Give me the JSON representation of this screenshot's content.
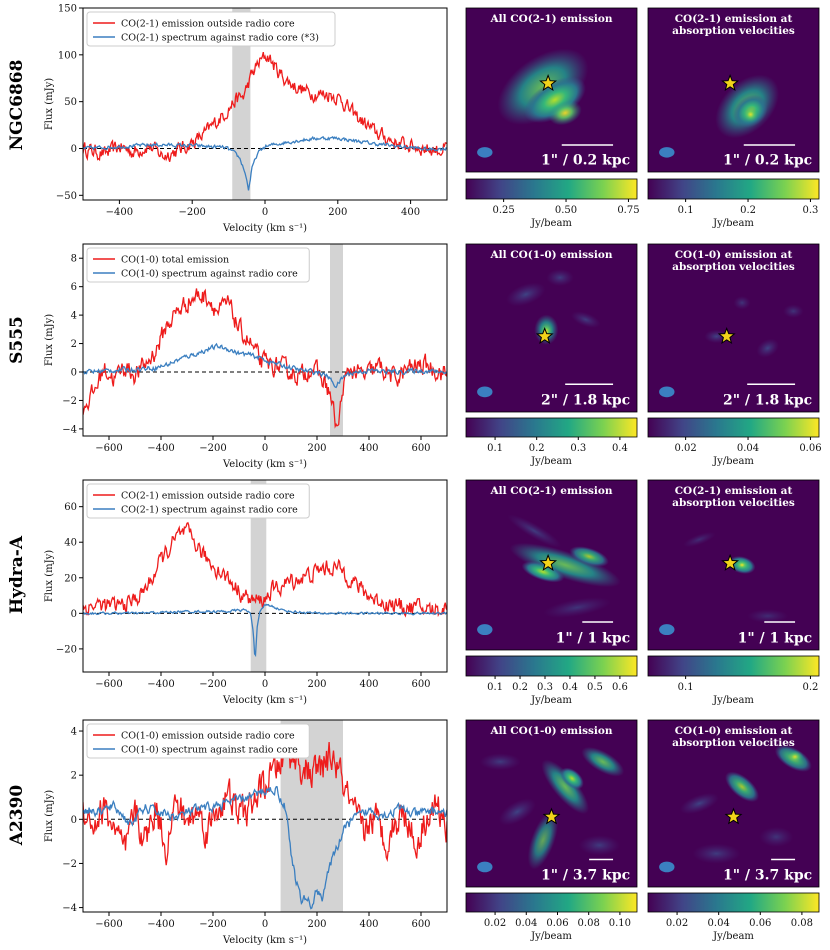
{
  "colors": {
    "red": "#ee1c1c",
    "blue": "#3b7fc0",
    "band": "#d3d3d3",
    "map_bg": "#440154",
    "star": "#f2d31a"
  },
  "chart_data": [
    {
      "type": "line",
      "source": "NGC6868",
      "xlabel": "Velocity (km s⁻¹)",
      "ylabel": "Flux (mJy)",
      "xlim": [
        -500,
        500
      ],
      "ylim": [
        -55,
        150
      ],
      "xticks": [
        -400,
        -200,
        0,
        200,
        400
      ],
      "yticks": [
        -50,
        0,
        50,
        100,
        150
      ],
      "band": [
        -90,
        -40
      ],
      "series": [
        {
          "name": "CO(2-1) emission outside radio core",
          "color": "red",
          "x": [
            -500,
            -440,
            -400,
            -360,
            -320,
            -280,
            -240,
            -200,
            -170,
            -140,
            -110,
            -80,
            -60,
            -40,
            -20,
            0,
            10,
            30,
            60,
            90,
            120,
            150,
            180,
            210,
            240,
            270,
            300,
            330,
            360,
            400,
            440,
            480,
            500
          ],
          "y": [
            0,
            -6,
            2,
            -4,
            3,
            -8,
            -2,
            6,
            14,
            26,
            38,
            52,
            55,
            75,
            90,
            98,
            98,
            85,
            72,
            65,
            60,
            58,
            58,
            52,
            38,
            28,
            18,
            12,
            6,
            3,
            0,
            -2,
            0
          ]
        },
        {
          "name": "CO(2-1) spectrum against radio core (*3)",
          "color": "blue",
          "x": [
            -500,
            -400,
            -300,
            -200,
            -150,
            -110,
            -90,
            -70,
            -55,
            -45,
            -35,
            -20,
            0,
            50,
            100,
            150,
            200,
            250,
            300,
            350,
            400,
            450,
            500
          ],
          "y": [
            0,
            2,
            4,
            3,
            2,
            1,
            -3,
            -10,
            -25,
            -44,
            -20,
            -5,
            2,
            6,
            9,
            11,
            11,
            8,
            5,
            3,
            1,
            -1,
            0
          ]
        }
      ]
    },
    {
      "type": "line",
      "source": "S555",
      "xlabel": "Velocity (km s⁻¹)",
      "ylabel": "Flux (mJy)",
      "xlim": [
        -700,
        700
      ],
      "ylim": [
        -4.5,
        9
      ],
      "xticks": [
        -600,
        -400,
        -200,
        0,
        200,
        400,
        600
      ],
      "yticks": [
        -4,
        -2,
        0,
        2,
        4,
        6,
        8
      ],
      "band": [
        250,
        300
      ],
      "series": [
        {
          "name": "CO(1-0) total emission",
          "color": "red",
          "x": [
            -700,
            -660,
            -620,
            -580,
            -540,
            -500,
            -460,
            -420,
            -380,
            -340,
            -300,
            -260,
            -220,
            -180,
            -140,
            -100,
            -60,
            -20,
            20,
            60,
            100,
            140,
            180,
            220,
            250,
            265,
            280,
            300,
            330,
            380,
            440,
            500,
            560,
            620,
            680,
            700
          ],
          "y": [
            -2.5,
            -1.5,
            0.3,
            -0.5,
            0.4,
            -0.2,
            0.5,
            1.5,
            3.2,
            4.2,
            4.9,
            5.4,
            5.3,
            4.2,
            4.8,
            3.0,
            2.1,
            0.8,
            0.5,
            0.3,
            0,
            -0.3,
            0.4,
            -0.5,
            -1.5,
            -3.0,
            -4.2,
            -1.0,
            0.2,
            -0.3,
            0.4,
            -0.5,
            0.3,
            0.5,
            0,
            -0.2
          ]
        },
        {
          "name": "CO(1-0) spectrum against radio core",
          "color": "blue",
          "x": [
            -700,
            -600,
            -500,
            -420,
            -380,
            -340,
            -300,
            -260,
            -220,
            -180,
            -140,
            -100,
            -60,
            -20,
            20,
            60,
            100,
            140,
            200,
            240,
            260,
            275,
            290,
            310,
            350,
            400,
            500,
            600,
            700
          ],
          "y": [
            0,
            0.1,
            0.2,
            0.3,
            0.5,
            0.8,
            1.1,
            1.3,
            1.6,
            1.8,
            1.6,
            1.3,
            1.2,
            1.0,
            0.7,
            0.5,
            0.3,
            0.1,
            0,
            -0.3,
            -0.7,
            -1.0,
            -0.6,
            -0.2,
            0,
            0.1,
            0,
            0.1,
            0
          ]
        }
      ]
    },
    {
      "type": "line",
      "source": "Hydra-A",
      "xlabel": "Velocity (km s⁻¹)",
      "ylabel": "Flux (mJy)",
      "xlim": [
        -700,
        700
      ],
      "ylim": [
        -33,
        75
      ],
      "xticks": [
        -600,
        -400,
        -200,
        0,
        200,
        400,
        600
      ],
      "yticks": [
        -20,
        0,
        20,
        40,
        60
      ],
      "band": [
        -55,
        5
      ],
      "series": [
        {
          "name": "CO(2-1) emission outside radio core",
          "color": "red",
          "x": [
            -700,
            -640,
            -580,
            -520,
            -480,
            -440,
            -400,
            -360,
            -330,
            -300,
            -270,
            -240,
            -200,
            -160,
            -120,
            -80,
            -50,
            -20,
            0,
            20,
            60,
            100,
            140,
            180,
            220,
            260,
            300,
            340,
            380,
            420,
            460,
            520,
            580,
            640,
            700
          ],
          "y": [
            3,
            5,
            4,
            6,
            10,
            18,
            30,
            38,
            44,
            45,
            40,
            33,
            27,
            22,
            16,
            10,
            7,
            7,
            8,
            12,
            15,
            18,
            20,
            22,
            25,
            26,
            24,
            18,
            12,
            8,
            6,
            4,
            3,
            2,
            3
          ]
        },
        {
          "name": "CO(2-1) spectrum against radio core",
          "color": "blue",
          "x": [
            -700,
            -500,
            -300,
            -150,
            -80,
            -55,
            -45,
            -38,
            -30,
            -20,
            0,
            30,
            60,
            100,
            200,
            300,
            400,
            500,
            600,
            700
          ],
          "y": [
            0,
            0,
            1,
            1,
            2,
            0,
            -10,
            -27,
            -8,
            0,
            5,
            4,
            2,
            1,
            0,
            0,
            0,
            0,
            0,
            0
          ]
        }
      ]
    },
    {
      "type": "line",
      "source": "A2390",
      "xlabel": "Velocity (km s⁻¹)",
      "ylabel": "Flux (mJy)",
      "xlim": [
        -700,
        700
      ],
      "ylim": [
        -4.2,
        4.5
      ],
      "xticks": [
        -600,
        -400,
        -200,
        0,
        200,
        400,
        600
      ],
      "yticks": [
        -4,
        -2,
        0,
        2,
        4
      ],
      "band": [
        60,
        300
      ],
      "series": [
        {
          "name": "CO(1-0) emission outside radio core",
          "color": "red",
          "x": [
            -700,
            -660,
            -620,
            -580,
            -540,
            -500,
            -460,
            -420,
            -380,
            -340,
            -300,
            -260,
            -220,
            -180,
            -140,
            -100,
            -60,
            -20,
            20,
            60,
            100,
            140,
            180,
            220,
            260,
            300,
            340,
            380,
            420,
            460,
            500,
            540,
            580,
            620,
            660,
            700
          ],
          "y": [
            0.6,
            -0.3,
            0.5,
            -0.4,
            -1.6,
            0.3,
            -1.0,
            0.6,
            -1.2,
            0.8,
            -0.2,
            0.4,
            -0.5,
            0.6,
            1.0,
            0.2,
            0.5,
            1.2,
            1.9,
            2.6,
            2.9,
            2.4,
            2.0,
            2.3,
            2.9,
            1.6,
            0.2,
            -0.6,
            0.2,
            -1.0,
            -0.2,
            0.4,
            -1.3,
            0.2,
            0.6,
            -0.4
          ]
        },
        {
          "name": "CO(1-0) spectrum against radio core",
          "color": "blue",
          "x": [
            -700,
            -640,
            -580,
            -520,
            -460,
            -400,
            -340,
            -280,
            -220,
            -160,
            -100,
            -40,
            0,
            40,
            80,
            100,
            120,
            140,
            160,
            180,
            200,
            220,
            240,
            260,
            280,
            300,
            340,
            400,
            460,
            520,
            580,
            640,
            700
          ],
          "y": [
            0.5,
            0.3,
            0.6,
            -0.2,
            0.5,
            0.3,
            0.1,
            0.4,
            0.5,
            0.7,
            0.9,
            1.1,
            1.3,
            1.4,
            0.5,
            -1.5,
            -2.8,
            -3.7,
            -3.6,
            -3.9,
            -3.2,
            -3.5,
            -2.5,
            -1.8,
            -1.2,
            -0.5,
            0,
            0.4,
            0.2,
            0.5,
            0.2,
            0.4,
            0.3
          ]
        }
      ]
    }
  ],
  "maps": [
    {
      "row": 0,
      "title_lines": [
        "All CO(2-1) emission"
      ],
      "scale": "1\" / 0.2 kpc",
      "cb_ticks": [
        "0.25",
        "0.50",
        "0.75"
      ],
      "cb_label": "Jy/beam"
    },
    {
      "row": 0,
      "title_lines": [
        "CO(2-1) emission at",
        "absorption velocities"
      ],
      "scale": "1\" / 0.2 kpc",
      "cb_ticks": [
        "0.1",
        "0.2",
        "0.3"
      ],
      "cb_label": "Jy/beam"
    },
    {
      "row": 1,
      "title_lines": [
        "All CO(1-0) emission"
      ],
      "scale": "2\" / 1.8 kpc",
      "cb_ticks": [
        "0.1",
        "0.2",
        "0.3",
        "0.4"
      ],
      "cb_label": "Jy/beam"
    },
    {
      "row": 1,
      "title_lines": [
        "CO(1-0) emission at",
        "absorption velocities"
      ],
      "scale": "2\" / 1.8 kpc",
      "cb_ticks": [
        "0.02",
        "0.04",
        "0.06"
      ],
      "cb_label": "Jy/beam"
    },
    {
      "row": 2,
      "title_lines": [
        "All CO(2-1) emission"
      ],
      "scale": "1\" / 1 kpc",
      "cb_ticks": [
        "0.1",
        "0.2",
        "0.3",
        "0.4",
        "0.5",
        "0.6"
      ],
      "cb_label": "Jy/beam"
    },
    {
      "row": 2,
      "title_lines": [
        "CO(2-1) emission at",
        "absorption velocities"
      ],
      "scale": "1\" / 1 kpc",
      "cb_ticks": [
        "0.1",
        "0.2"
      ],
      "cb_label": "Jy/beam"
    },
    {
      "row": 3,
      "title_lines": [
        "All CO(1-0) emission"
      ],
      "scale": "1\" / 3.7 kpc",
      "cb_ticks": [
        "0.02",
        "0.04",
        "0.06",
        "0.08",
        "0.10"
      ],
      "cb_label": "Jy/beam"
    },
    {
      "row": 3,
      "title_lines": [
        "CO(1-0) emission at",
        "absorption velocities"
      ],
      "scale": "1\" / 3.7 kpc",
      "cb_ticks": [
        "0.02",
        "0.04",
        "0.06",
        "0.08"
      ],
      "cb_label": "Jy/beam"
    }
  ]
}
